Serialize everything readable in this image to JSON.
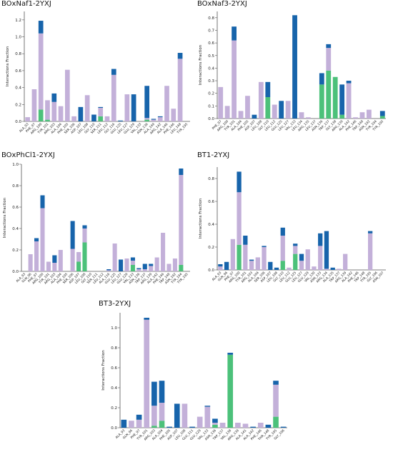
{
  "colors": {
    "hbond": "#1764ab",
    "hydrophobic": "#c3b0d9",
    "water_bridge": "#4cc17a"
  },
  "chart_data": [
    {
      "type": "bar",
      "title": "BOxNaf1-2YXJ",
      "ylabel": "Interactions Fraction",
      "ylim": [
        0,
        1.3
      ],
      "yticks": [
        "0.0",
        "0.2",
        "0.4",
        "0.6",
        "0.8",
        "1.0",
        "1.2"
      ],
      "yticks_values": [
        0,
        0.2,
        0.4,
        0.6,
        0.8,
        1.0,
        1.2
      ],
      "categories": [
        "ALA_93",
        "PHE_97",
        "ARG_100",
        "TYR_101",
        "ARG_103",
        "ALA_104",
        "PHE_105",
        "SER_106",
        "ASP_107",
        "LEU_108",
        "GLY_110",
        "SER_111",
        "LEU_112",
        "GLY_116",
        "GLU_125",
        "LEU_127",
        "GLU_129",
        "VAL_133",
        "ASN_136",
        "ALA_149",
        "ARG_142",
        "ALA_146",
        "PHE_146",
        "LEU_148",
        "TYR_195"
      ],
      "series": [
        {
          "key": "water_bridge",
          "values": [
            0,
            0,
            0.14,
            0.02,
            0,
            0,
            0,
            0,
            0,
            0,
            0,
            0.06,
            0,
            0,
            0,
            0,
            0,
            0,
            0.02,
            0,
            0,
            0,
            0,
            0,
            0
          ]
        },
        {
          "key": "hydrophobic",
          "values": [
            0.05,
            0.38,
            0.9,
            0.23,
            0.23,
            0.18,
            0.61,
            0.06,
            0.0,
            0.31,
            0,
            0.1,
            0.06,
            0.55,
            0.0,
            0.32,
            0,
            0,
            0.02,
            0.02,
            0.05,
            0.42,
            0.15,
            0.74,
            0
          ]
        },
        {
          "key": "hbond",
          "values": [
            0,
            0,
            0.15,
            0,
            0.1,
            0,
            0,
            0,
            0.17,
            0,
            0.08,
            0.01,
            0,
            0.07,
            0.01,
            0,
            0.32,
            0,
            0.38,
            0.01,
            0.01,
            0,
            0,
            0.07,
            0
          ]
        }
      ]
    },
    {
      "type": "bar",
      "title": "BOxNaf3-2YXJ",
      "ylabel": "Interactions Fraction",
      "ylim": [
        0,
        0.85
      ],
      "yticks": [
        "0.0",
        "0.1",
        "0.2",
        "0.3",
        "0.4",
        "0.5",
        "0.6",
        "0.7",
        "0.8"
      ],
      "yticks_values": [
        0,
        0.1,
        0.2,
        0.3,
        0.4,
        0.5,
        0.6,
        0.7,
        0.8
      ],
      "categories": [
        "PHE_97",
        "ARG_100",
        "TYR_101",
        "ALA_104",
        "PHE_105",
        "ASP_107",
        "LEU_108",
        "GLY_110",
        "LEU_112",
        "GLU_125",
        "LEU_127",
        "VAL_133",
        "LEU_134",
        "ARG_135",
        "LEU_137",
        "ASN_136",
        "TRP_137",
        "GLY_138",
        "ARG_139",
        "ALA_142",
        "PHE_146",
        "TRP_148",
        "ASN_192",
        "TYR_194",
        "TYR_195"
      ],
      "series": [
        {
          "key": "water_bridge",
          "values": [
            0,
            0,
            0,
            0,
            0,
            0,
            0,
            0.17,
            0,
            0,
            0,
            0,
            0,
            0,
            0,
            0.27,
            0.38,
            0.33,
            0.03,
            0,
            0,
            0,
            0,
            0,
            0.02
          ]
        },
        {
          "key": "hydrophobic",
          "values": [
            0.25,
            0.1,
            0.62,
            0.06,
            0.18,
            0.0,
            0.29,
            0,
            0.11,
            0,
            0.14,
            0,
            0.05,
            0.01,
            0,
            0.0,
            0.18,
            0,
            0,
            0.28,
            0.01,
            0.05,
            0.07,
            0,
            0
          ]
        },
        {
          "key": "hbond",
          "values": [
            0,
            0,
            0.11,
            0,
            0,
            0.03,
            0,
            0.12,
            0,
            0.14,
            0,
            0.82,
            0,
            0,
            0,
            0.09,
            0.03,
            0,
            0.24,
            0.02,
            0,
            0,
            0,
            0,
            0.04
          ]
        }
      ]
    },
    {
      "type": "bar",
      "title": "BOxPhCl1-2YXJ",
      "ylabel": "Interactions Fraction",
      "ylim": [
        0,
        1.0
      ],
      "yticks": [
        "0.0",
        "0.2",
        "0.4",
        "0.6",
        "0.8",
        "1.0"
      ],
      "yticks_values": [
        0,
        0.2,
        0.4,
        0.6,
        0.8,
        1.0
      ],
      "categories": [
        "ALA_93",
        "GLN_96",
        "PHE_97",
        "ARG_100",
        "TYR_101",
        "ARG_103",
        "ALA_104",
        "PHE_105",
        "SER_106",
        "ASP_107",
        "LEU_108",
        "GLY_110",
        "SER_111",
        "LEU_112",
        "ALA_116",
        "GLU_125",
        "LEU_127",
        "GLU_129",
        "VAL_133",
        "ASN_136",
        "TRP_137",
        "ARG_139",
        "ALA_142",
        "PHE_146",
        "TRP_148",
        "ASN_192",
        "TYR_194",
        "TYR_195"
      ],
      "series": [
        {
          "key": "water_bridge",
          "values": [
            0,
            0,
            0,
            0,
            0,
            0,
            0,
            0,
            0,
            0.09,
            0.27,
            0,
            0,
            0,
            0,
            0,
            0,
            0,
            0.06,
            0,
            0,
            0,
            0,
            0,
            0,
            0,
            0.06,
            0
          ]
        },
        {
          "key": "hydrophobic",
          "values": [
            0,
            0.16,
            0.28,
            0.59,
            0.09,
            0.08,
            0.2,
            0,
            0.21,
            0.09,
            0.13,
            0,
            0,
            0,
            0.01,
            0.26,
            0,
            0.12,
            0.04,
            0.02,
            0.02,
            0.05,
            0.13,
            0.36,
            0.07,
            0.12,
            0.84,
            0
          ]
        },
        {
          "key": "hbond",
          "values": [
            0,
            0,
            0.03,
            0.12,
            0,
            0.07,
            0,
            0,
            0.26,
            0,
            0.03,
            0,
            0,
            0,
            0.01,
            0,
            0.11,
            0,
            0.03,
            0.01,
            0.05,
            0.02,
            0,
            0,
            0,
            0,
            0.06,
            0
          ]
        }
      ]
    },
    {
      "type": "bar",
      "title": "BT1-2YXJ",
      "ylabel": "Interactions Fraction",
      "ylim": [
        0,
        0.9
      ],
      "yticks": [
        "0.0",
        "0.2",
        "0.4",
        "0.6",
        "0.8"
      ],
      "yticks_values": [
        0,
        0.2,
        0.4,
        0.6,
        0.8
      ],
      "categories": [
        "ALA_93",
        "GLN_96",
        "PHE_97",
        "ARG_100",
        "TYR_101",
        "ARG_103",
        "ALA_104",
        "SER_106",
        "ASP_107",
        "LEU_108",
        "GLY_110",
        "LEU_112",
        "GLU_125",
        "LEU_127",
        "GLU_129",
        "VAL_130",
        "ASN_133",
        "ARG_134",
        "ALA_135",
        "TRP_137",
        "ARG_139",
        "ALA_142",
        "PHE_146",
        "TRP_148",
        "TYR_195",
        "GLY_196",
        "ASN_197"
      ],
      "series": [
        {
          "key": "water_bridge",
          "values": [
            0,
            0,
            0,
            0.22,
            0,
            0,
            0,
            0,
            0,
            0,
            0.08,
            0,
            0.14,
            0,
            0,
            0,
            0,
            0,
            0,
            0,
            0,
            0,
            0,
            0,
            0,
            0,
            0
          ]
        },
        {
          "key": "hydrophobic",
          "values": [
            0.03,
            0,
            0.27,
            0.46,
            0.22,
            0.08,
            0.11,
            0.2,
            0,
            0,
            0.22,
            0.02,
            0.07,
            0.08,
            0.18,
            0.03,
            0.21,
            0.01,
            0,
            0.01,
            0.14,
            0,
            0,
            0,
            0.32,
            0,
            0
          ]
        },
        {
          "key": "hbond",
          "values": [
            0.02,
            0.07,
            0,
            0.18,
            0.08,
            0.01,
            0,
            0.01,
            0.07,
            0.02,
            0.07,
            0,
            0.02,
            0.06,
            0,
            0,
            0.11,
            0.33,
            0.02,
            0,
            0,
            0,
            0,
            0,
            0.02,
            0,
            0
          ]
        }
      ]
    },
    {
      "type": "bar",
      "title": "BT3-2YXJ",
      "ylabel": "Interactions Fraction",
      "ylim": [
        0,
        1.15
      ],
      "yticks": [
        "0.0",
        "0.2",
        "0.4",
        "0.6",
        "0.8",
        "1.0"
      ],
      "yticks_values": [
        0,
        0.2,
        0.4,
        0.6,
        0.8,
        1.0
      ],
      "categories": [
        "ALA_93",
        "GLN_96",
        "PHE_97",
        "TYR_101",
        "ARG_103",
        "ALA_104",
        "PHE_105",
        "ASP_107",
        "LEU_108",
        "GLU_111",
        "GLU_129",
        "VAL_133",
        "ASN_136",
        "TRP_137",
        "VAL_138",
        "ARG_139",
        "ALA_141",
        "ALA_142",
        "PHE_146",
        "THR_148",
        "TYR_195",
        "GLY_196"
      ],
      "series": [
        {
          "key": "water_bridge",
          "values": [
            0,
            0,
            0,
            0,
            0.02,
            0.07,
            0,
            0,
            0,
            0,
            0,
            0,
            0.03,
            0,
            0.73,
            0,
            0,
            0,
            0,
            0,
            0.11,
            0
          ]
        },
        {
          "key": "hydrophobic",
          "values": [
            0,
            0.07,
            0.08,
            1.08,
            0.2,
            0.18,
            0,
            0,
            0.24,
            0,
            0.11,
            0.21,
            0.02,
            0.05,
            0,
            0.05,
            0.04,
            0,
            0.05,
            0,
            0.32,
            0
          ]
        },
        {
          "key": "hbond",
          "values": [
            0.08,
            0,
            0.05,
            0.02,
            0.24,
            0.22,
            0.01,
            0.24,
            0,
            0.01,
            0,
            0.01,
            0.04,
            0,
            0.02,
            0,
            0,
            0.01,
            0,
            0.03,
            0.04,
            0.01
          ]
        }
      ]
    }
  ]
}
